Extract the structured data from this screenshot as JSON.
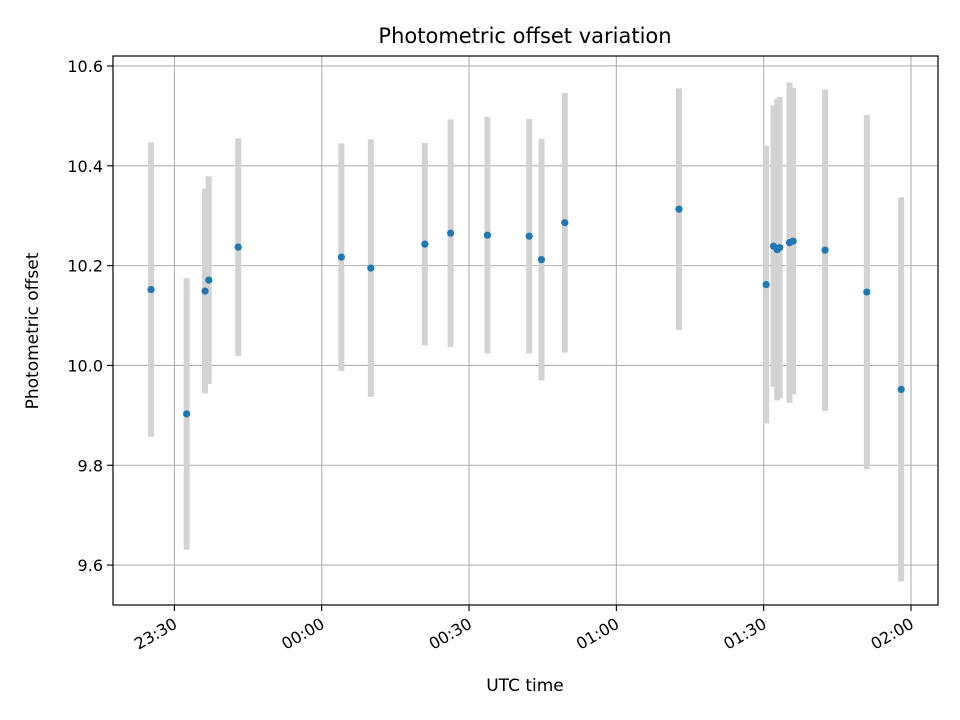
{
  "chart_data": {
    "type": "scatter",
    "title": "Photometric offset variation",
    "xlabel": "UTC time",
    "ylabel": "Photometric offset",
    "xlim": [
      "23:17:30",
      "02:05:30"
    ],
    "ylim": [
      9.52,
      10.62
    ],
    "x_ticks": [
      "23:30",
      "00:00",
      "00:30",
      "01:00",
      "01:30",
      "02:00"
    ],
    "y_ticks": [
      9.6,
      9.8,
      10.0,
      10.2,
      10.4,
      10.6
    ],
    "y_tick_labels": [
      "9.6",
      "9.8",
      "10.0",
      "10.2",
      "10.4",
      "10.6"
    ],
    "grid": true,
    "colors": {
      "marker": "#1f77b4",
      "errorbar": "#d3d3d3",
      "grid": "#b0b0b0"
    },
    "points": [
      {
        "x": "23:25:15",
        "y": 10.152,
        "err": 0.295
      },
      {
        "x": "23:32:30",
        "y": 9.903,
        "err": 0.272
      },
      {
        "x": "23:36:15",
        "y": 10.149,
        "err": 0.205
      },
      {
        "x": "23:37:00",
        "y": 10.171,
        "err": 0.208
      },
      {
        "x": "23:43:00",
        "y": 10.237,
        "err": 0.218
      },
      {
        "x": "00:04:00",
        "y": 10.217,
        "err": 0.228
      },
      {
        "x": "00:10:00",
        "y": 10.195,
        "err": 0.258
      },
      {
        "x": "00:21:00",
        "y": 10.243,
        "err": 0.203
      },
      {
        "x": "00:26:15",
        "y": 10.265,
        "err": 0.228
      },
      {
        "x": "00:33:45",
        "y": 10.261,
        "err": 0.237
      },
      {
        "x": "00:42:15",
        "y": 10.259,
        "err": 0.235
      },
      {
        "x": "00:44:45",
        "y": 10.212,
        "err": 0.242
      },
      {
        "x": "00:49:30",
        "y": 10.286,
        "err": 0.26
      },
      {
        "x": "01:12:45",
        "y": 10.313,
        "err": 0.242
      },
      {
        "x": "01:30:30",
        "y": 10.162,
        "err": 0.278
      },
      {
        "x": "01:32:00",
        "y": 10.239,
        "err": 0.282
      },
      {
        "x": "01:32:45",
        "y": 10.232,
        "err": 0.302
      },
      {
        "x": "01:33:15",
        "y": 10.236,
        "err": 0.302
      },
      {
        "x": "01:35:15",
        "y": 10.246,
        "err": 0.321
      },
      {
        "x": "01:36:00",
        "y": 10.249,
        "err": 0.307
      },
      {
        "x": "01:42:30",
        "y": 10.231,
        "err": 0.322
      },
      {
        "x": "01:51:00",
        "y": 10.147,
        "err": 0.355
      },
      {
        "x": "01:58:00",
        "y": 9.952,
        "err": 0.385
      }
    ]
  }
}
